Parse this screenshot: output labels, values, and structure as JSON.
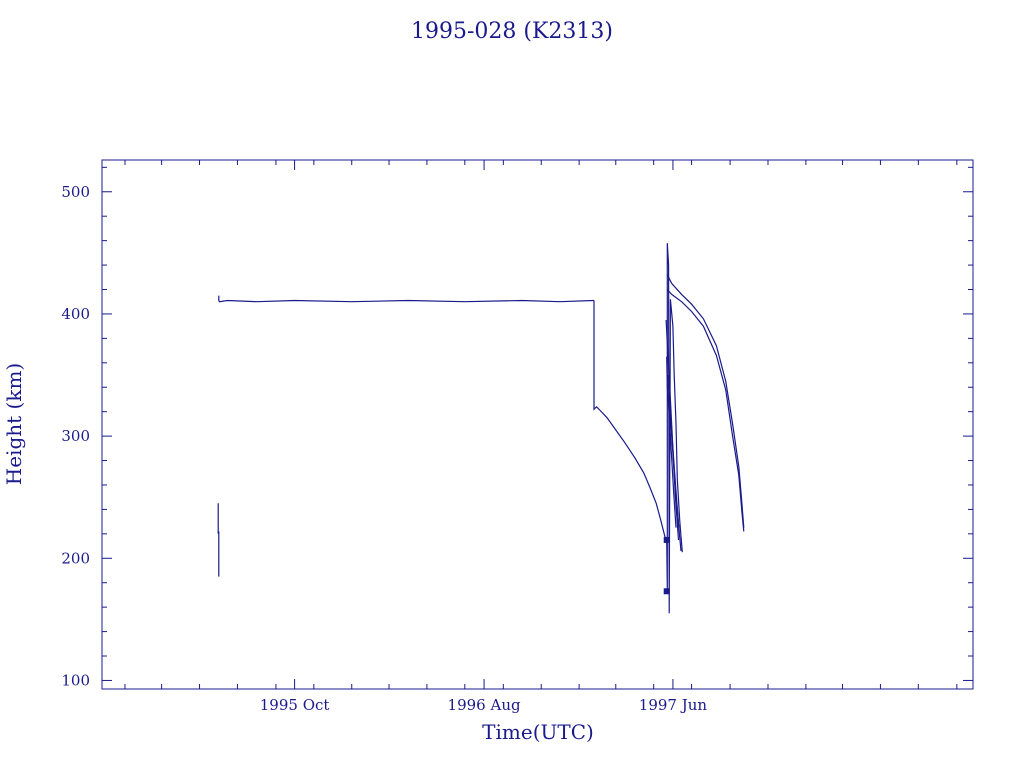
{
  "chart_data": {
    "type": "line",
    "title": "1995-028 (K2313)",
    "xlabel": "Time(UTC)",
    "ylabel": "Height (km)",
    "xlim": [
      "1994-11-25",
      "1998-09-27"
    ],
    "ylim": [
      93,
      526
    ],
    "x_ticks": [
      {
        "date": "1995-10-01",
        "label": "1995 Oct"
      },
      {
        "date": "1996-08-01",
        "label": "1996 Aug"
      },
      {
        "date": "1997-06-01",
        "label": "1997 Jun"
      }
    ],
    "y_ticks": [
      100,
      200,
      300,
      400,
      500
    ],
    "grid": false,
    "color": "#1a1a8c",
    "series": [
      {
        "x": [
          "1995-05-31",
          "1995-05-31",
          "1995-06-01",
          "1995-06-01"
        ],
        "y": [
          245,
          220,
          222,
          185
        ]
      },
      {
        "x": [
          "1995-06-01",
          "1995-06-01",
          "1995-06-02",
          "1995-06-15",
          "1995-08-01",
          "1995-10-01",
          "1996-01-01",
          "1996-04-01",
          "1996-07-01",
          "1996-10-01",
          "1996-12-01",
          "1997-01-24",
          "1997-01-25"
        ],
        "y": [
          415,
          411,
          410,
          411,
          410,
          411,
          410,
          411,
          410,
          411,
          410,
          411,
          411
        ]
      },
      {
        "x": [
          "1997-01-25",
          "1997-01-25",
          "1997-01-29",
          "1997-02-04",
          "1997-02-15",
          "1997-03-01",
          "1997-03-15",
          "1997-04-01",
          "1997-04-15",
          "1997-04-25",
          "1997-05-05",
          "1997-05-12",
          "1997-05-18",
          "1997-05-21"
        ],
        "y": [
          411,
          322,
          324,
          321,
          315,
          305,
          295,
          282,
          270,
          258,
          245,
          232,
          220,
          214
        ]
      },
      {
        "x": [
          "1997-05-22",
          "1997-05-23",
          "1997-05-23",
          "1997-05-25",
          "1997-05-26",
          "1997-05-28",
          "1997-06-01",
          "1997-06-03",
          "1997-06-06",
          "1997-06-08",
          "1997-06-12",
          "1997-06-16"
        ],
        "y": [
          215,
          175,
          458,
          440,
          155,
          412,
          390,
          350,
          310,
          265,
          230,
          205
        ]
      },
      {
        "x": [
          "1997-05-21",
          "1997-05-24",
          "1997-05-28",
          "1997-06-01",
          "1997-06-05",
          "1997-06-10"
        ],
        "y": [
          395,
          365,
          330,
          290,
          250,
          215
        ]
      },
      {
        "x": [
          "1997-05-22",
          "1997-05-23",
          "1997-05-26",
          "1997-05-29",
          "1997-06-02",
          "1997-06-06"
        ],
        "y": [
          365,
          340,
          318,
          290,
          255,
          225
        ]
      },
      {
        "x": [
          "1997-05-24",
          "1997-05-26",
          "1997-05-30",
          "1997-06-04",
          "1997-06-10",
          "1997-06-14"
        ],
        "y": [
          350,
          330,
          300,
          262,
          228,
          206
        ]
      },
      {
        "x": [
          "1997-05-26",
          "1997-05-28",
          "1997-06-01",
          "1997-06-06",
          "1997-06-11"
        ],
        "y": [
          345,
          318,
          290,
          255,
          222
        ]
      },
      {
        "x": [
          "1997-05-23",
          "1997-05-30",
          "1997-06-15",
          "1997-07-01",
          "1997-07-20",
          "1997-08-10",
          "1997-08-25",
          "1997-09-05",
          "1997-09-15",
          "1997-09-20",
          "1997-09-23"
        ],
        "y": [
          432,
          425,
          416,
          408,
          396,
          374,
          345,
          310,
          275,
          245,
          225
        ]
      },
      {
        "x": [
          "1997-05-23",
          "1997-05-30",
          "1997-06-15",
          "1997-07-01",
          "1997-07-20",
          "1997-08-10",
          "1997-08-25",
          "1997-09-05",
          "1997-09-15",
          "1997-09-20",
          "1997-09-23"
        ],
        "y": [
          420,
          416,
          410,
          402,
          390,
          366,
          338,
          300,
          268,
          238,
          222
        ]
      }
    ],
    "markers": [
      {
        "x": "1997-05-22",
        "y": 215
      },
      {
        "x": "1997-05-22",
        "y": 173
      }
    ]
  }
}
